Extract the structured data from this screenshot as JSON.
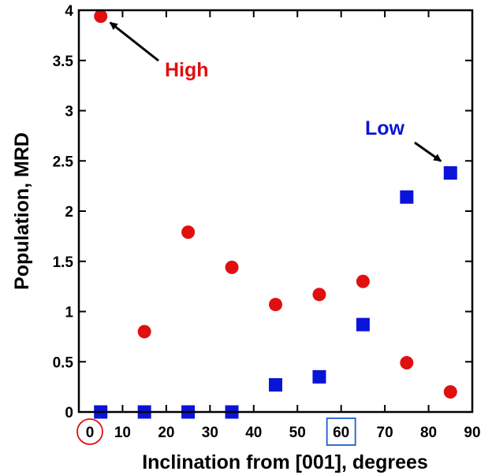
{
  "chart_data": {
    "type": "scatter",
    "xlabel": "Inclination from [001], degrees",
    "ylabel": "Population, MRD",
    "xlim": [
      0,
      90
    ],
    "ylim": [
      0,
      4
    ],
    "x_ticks": [
      0,
      10,
      20,
      30,
      40,
      50,
      60,
      70,
      80,
      90
    ],
    "y_ticks": [
      0,
      0.5,
      1,
      1.5,
      2,
      2.5,
      3,
      3.5,
      4
    ],
    "grid": false,
    "series": [
      {
        "marker": "circle",
        "color": "#e01010",
        "points": [
          {
            "x": 5,
            "y": 3.94
          },
          {
            "x": 15,
            "y": 0.8
          },
          {
            "x": 25,
            "y": 1.79
          },
          {
            "x": 35,
            "y": 1.44
          },
          {
            "x": 45,
            "y": 1.07
          },
          {
            "x": 55,
            "y": 1.17
          },
          {
            "x": 65,
            "y": 1.3
          },
          {
            "x": 75,
            "y": 0.49
          },
          {
            "x": 85,
            "y": 0.2
          }
        ]
      },
      {
        "marker": "square",
        "color": "#0a14d8",
        "points": [
          {
            "x": 5,
            "y": 0
          },
          {
            "x": 15,
            "y": 0
          },
          {
            "x": 25,
            "y": 0
          },
          {
            "x": 35,
            "y": 0
          },
          {
            "x": 45,
            "y": 0.27
          },
          {
            "x": 55,
            "y": 0.35
          },
          {
            "x": 65,
            "y": 0.87
          },
          {
            "x": 75,
            "y": 2.14
          },
          {
            "x": 85,
            "y": 2.38
          }
        ]
      }
    ],
    "annotations": [
      {
        "text": "High",
        "color": "#e01010",
        "points_to": {
          "x": 5,
          "y": 3.94
        }
      },
      {
        "text": "Low",
        "color": "#0a14d8",
        "points_to": {
          "x": 85,
          "y": 2.38
        }
      }
    ],
    "highlighted_ticks": [
      {
        "value": 0,
        "shape": "circle",
        "color": "#e01010"
      },
      {
        "value": 60,
        "shape": "square",
        "color": "#1a5fd0"
      }
    ]
  }
}
